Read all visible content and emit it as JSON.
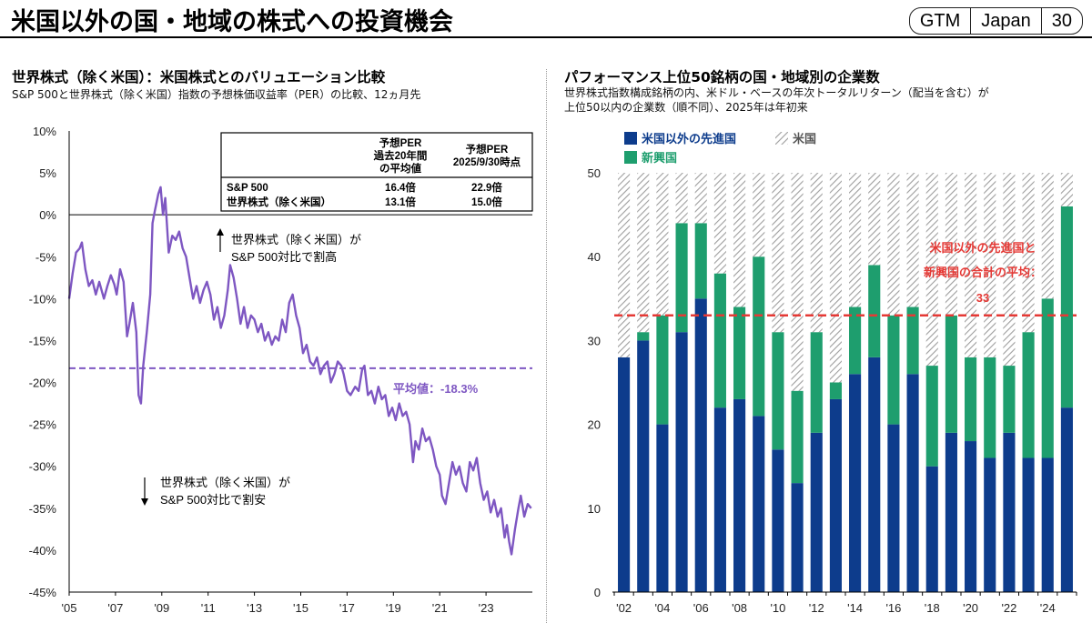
{
  "page": {
    "title": "米国以外の国・地域の株式への投資機会",
    "badge": [
      "GTM",
      "Japan",
      "30"
    ]
  },
  "left": {
    "title": "世界株式（除く米国）：米国株式とのバリュエーション比較",
    "subtitle": "S&P 500と世界株式（除く米国）指数の予想株価収益率（PER）の比較、12ヵ月先",
    "table": {
      "header_col1": [
        "予想PER",
        "過去20年間",
        "の平均値"
      ],
      "header_col2": [
        "予想PER",
        "2025/9/30時点"
      ],
      "rows": [
        {
          "label": "S&P 500",
          "avg": "16.4倍",
          "current": "22.9倍"
        },
        {
          "label": "世界株式（除く米国）",
          "avg": "13.1倍",
          "current": "15.0倍"
        }
      ]
    },
    "annotation_up": [
      "世界株式（除く米国）が",
      "S&P 500対比で割高"
    ],
    "annotation_down": [
      "世界株式（除く米国）が",
      "S&P 500対比で割安"
    ],
    "avg_label": "平均値：-18.3%"
  },
  "right": {
    "title": "パフォーマンス上位50銘柄の国・地域別の企業数",
    "subtitle_lines": [
      "世界株式指数構成銘柄の内、米ドル・ベースの年次トータルリターン（配当を含む）が",
      "上位50以内の企業数（順不同）、2025年は年初来"
    ],
    "legend": [
      "米国以外の先進国",
      "米国",
      "新興国"
    ],
    "avg_label_lines": [
      "米国以外の先進国と",
      "新興国の合計の平均：",
      "33"
    ]
  },
  "chart_data": [
    {
      "type": "line",
      "title": "世界株式（除く米国）：米国株式とのバリュエーション比較",
      "xlabel": "",
      "ylabel": "",
      "x_ticks": [
        "'05",
        "'07",
        "'09",
        "'11",
        "'13",
        "'15",
        "'17",
        "'19",
        "'21",
        "'23"
      ],
      "y_ticks": [
        "10%",
        "5%",
        "0%",
        "-5%",
        "-10%",
        "-15%",
        "-20%",
        "-25%",
        "-30%",
        "-35%",
        "-40%",
        "-45%"
      ],
      "ylim": [
        -45,
        10
      ],
      "xlim": [
        2005.0,
        2025.0
      ],
      "average": -18.3,
      "series": [
        {
          "color": "#7E57C2",
          "points": [
            [
              2005.0,
              -10.0
            ],
            [
              2005.15,
              -7.0
            ],
            [
              2005.3,
              -4.5
            ],
            [
              2005.45,
              -4.0
            ],
            [
              2005.55,
              -3.3
            ],
            [
              2005.7,
              -6.5
            ],
            [
              2005.85,
              -8.5
            ],
            [
              2006.0,
              -7.8
            ],
            [
              2006.15,
              -9.5
            ],
            [
              2006.3,
              -8.0
            ],
            [
              2006.5,
              -10.0
            ],
            [
              2006.65,
              -8.5
            ],
            [
              2006.8,
              -7.2
            ],
            [
              2006.95,
              -8.3
            ],
            [
              2007.05,
              -9.5
            ],
            [
              2007.2,
              -6.5
            ],
            [
              2007.35,
              -8.0
            ],
            [
              2007.5,
              -14.5
            ],
            [
              2007.6,
              -13.0
            ],
            [
              2007.75,
              -10.5
            ],
            [
              2007.9,
              -14.0
            ],
            [
              2008.0,
              -21.5
            ],
            [
              2008.1,
              -22.5
            ],
            [
              2008.2,
              -18.0
            ],
            [
              2008.35,
              -14.0
            ],
            [
              2008.5,
              -9.5
            ],
            [
              2008.6,
              -1.0
            ],
            [
              2008.7,
              0.5
            ],
            [
              2008.85,
              2.5
            ],
            [
              2008.95,
              3.3
            ],
            [
              2009.05,
              0.0
            ],
            [
              2009.15,
              2.0
            ],
            [
              2009.3,
              -4.5
            ],
            [
              2009.45,
              -2.5
            ],
            [
              2009.6,
              -3.0
            ],
            [
              2009.75,
              -2.0
            ],
            [
              2009.9,
              -4.0
            ],
            [
              2010.05,
              -5.0
            ],
            [
              2010.2,
              -7.5
            ],
            [
              2010.35,
              -10.0
            ],
            [
              2010.5,
              -8.5
            ],
            [
              2010.65,
              -10.5
            ],
            [
              2010.8,
              -9.0
            ],
            [
              2010.95,
              -8.0
            ],
            [
              2011.1,
              -9.5
            ],
            [
              2011.25,
              -12.5
            ],
            [
              2011.4,
              -11.0
            ],
            [
              2011.55,
              -13.5
            ],
            [
              2011.7,
              -12.0
            ],
            [
              2011.85,
              -9.0
            ],
            [
              2011.95,
              -6.0
            ],
            [
              2012.1,
              -7.5
            ],
            [
              2012.25,
              -10.0
            ],
            [
              2012.4,
              -13.0
            ],
            [
              2012.55,
              -11.0
            ],
            [
              2012.7,
              -13.5
            ],
            [
              2012.85,
              -12.0
            ],
            [
              2013.0,
              -12.5
            ],
            [
              2013.15,
              -14.0
            ],
            [
              2013.3,
              -13.0
            ],
            [
              2013.45,
              -15.0
            ],
            [
              2013.6,
              -14.0
            ],
            [
              2013.75,
              -15.5
            ],
            [
              2013.9,
              -14.5
            ],
            [
              2014.05,
              -15.0
            ],
            [
              2014.2,
              -12.5
            ],
            [
              2014.35,
              -14.0
            ],
            [
              2014.5,
              -10.5
            ],
            [
              2014.65,
              -9.5
            ],
            [
              2014.8,
              -12.0
            ],
            [
              2014.95,
              -13.5
            ],
            [
              2015.1,
              -16.5
            ],
            [
              2015.25,
              -15.5
            ],
            [
              2015.4,
              -17.5
            ],
            [
              2015.55,
              -18.0
            ],
            [
              2015.7,
              -17.0
            ],
            [
              2015.85,
              -19.0
            ],
            [
              2016.0,
              -18.0
            ],
            [
              2016.15,
              -17.5
            ],
            [
              2016.3,
              -20.0
            ],
            [
              2016.45,
              -19.0
            ],
            [
              2016.6,
              -17.5
            ],
            [
              2016.75,
              -18.0
            ],
            [
              2016.85,
              -19.0
            ],
            [
              2017.0,
              -21.0
            ],
            [
              2017.15,
              -21.5
            ],
            [
              2017.35,
              -20.5
            ],
            [
              2017.5,
              -21.0
            ],
            [
              2017.65,
              -18.5
            ],
            [
              2017.75,
              -18.0
            ],
            [
              2017.9,
              -21.5
            ],
            [
              2018.05,
              -21.0
            ],
            [
              2018.2,
              -22.5
            ],
            [
              2018.35,
              -20.5
            ],
            [
              2018.5,
              -22.0
            ],
            [
              2018.65,
              -21.5
            ],
            [
              2018.8,
              -24.0
            ],
            [
              2018.95,
              -23.0
            ],
            [
              2019.1,
              -24.5
            ],
            [
              2019.25,
              -22.5
            ],
            [
              2019.4,
              -24.0
            ],
            [
              2019.55,
              -23.5
            ],
            [
              2019.7,
              -25.0
            ],
            [
              2019.85,
              -29.5
            ],
            [
              2019.95,
              -27.0
            ],
            [
              2020.1,
              -28.0
            ],
            [
              2020.25,
              -25.5
            ],
            [
              2020.4,
              -27.0
            ],
            [
              2020.55,
              -26.5
            ],
            [
              2020.7,
              -28.0
            ],
            [
              2020.85,
              -30.0
            ],
            [
              2021.0,
              -31.0
            ],
            [
              2021.1,
              -33.5
            ],
            [
              2021.25,
              -34.5
            ],
            [
              2021.4,
              -32.0
            ],
            [
              2021.55,
              -29.5
            ],
            [
              2021.7,
              -31.0
            ],
            [
              2021.85,
              -30.0
            ],
            [
              2022.0,
              -32.0
            ],
            [
              2022.15,
              -33.0
            ],
            [
              2022.3,
              -29.5
            ],
            [
              2022.45,
              -30.5
            ],
            [
              2022.6,
              -29.0
            ],
            [
              2022.75,
              -32.0
            ],
            [
              2022.9,
              -34.0
            ],
            [
              2023.05,
              -33.0
            ],
            [
              2023.2,
              -35.5
            ],
            [
              2023.35,
              -34.0
            ],
            [
              2023.5,
              -36.0
            ],
            [
              2023.65,
              -35.0
            ],
            [
              2023.8,
              -38.5
            ],
            [
              2023.9,
              -37.0
            ],
            [
              2024.0,
              -39.0
            ],
            [
              2024.1,
              -40.5
            ],
            [
              2024.25,
              -37.5
            ],
            [
              2024.4,
              -35.0
            ],
            [
              2024.5,
              -33.5
            ],
            [
              2024.65,
              -36.0
            ],
            [
              2024.8,
              -34.5
            ],
            [
              2024.95,
              -35.0
            ]
          ]
        }
      ]
    },
    {
      "type": "bar",
      "stacked": true,
      "title": "パフォーマンス上位50銘柄の国・地域別の企業数",
      "categories": [
        "'02",
        "'03",
        "'04",
        "'05",
        "'06",
        "'07",
        "'08",
        "'09",
        "'10",
        "'11",
        "'12",
        "'13",
        "'14",
        "'15",
        "'16",
        "'17",
        "'18",
        "'19",
        "'20",
        "'21",
        "'22",
        "'23",
        "'24",
        "'25"
      ],
      "x_tick_labels": [
        "'02",
        "'04",
        "'06",
        "'08",
        "'10",
        "'12",
        "'14",
        "'16",
        "'18",
        "'20",
        "'22",
        "'24"
      ],
      "ylim": [
        0,
        50
      ],
      "y_ticks": [
        0,
        10,
        20,
        30,
        40,
        50
      ],
      "average": 33,
      "total": 50,
      "series": [
        {
          "name": "米国以外の先進国",
          "color": "#0D3C8C",
          "values": [
            28,
            30,
            20,
            31,
            35,
            22,
            23,
            21,
            17,
            13,
            19,
            23,
            26,
            28,
            20,
            26,
            15,
            19,
            18,
            16,
            19,
            16,
            16,
            22
          ]
        },
        {
          "name": "新興国",
          "color": "#1E9E6E",
          "values": [
            0,
            1,
            13,
            13,
            9,
            16,
            11,
            19,
            14,
            11,
            12,
            2,
            8,
            11,
            13,
            8,
            12,
            14,
            10,
            12,
            8,
            15,
            19,
            24
          ]
        },
        {
          "name": "米国",
          "color": "#BDBDBD",
          "values": [
            22,
            19,
            17,
            6,
            6,
            12,
            16,
            10,
            19,
            26,
            19,
            25,
            16,
            11,
            17,
            16,
            23,
            17,
            22,
            22,
            23,
            19,
            15,
            4
          ]
        }
      ]
    }
  ]
}
